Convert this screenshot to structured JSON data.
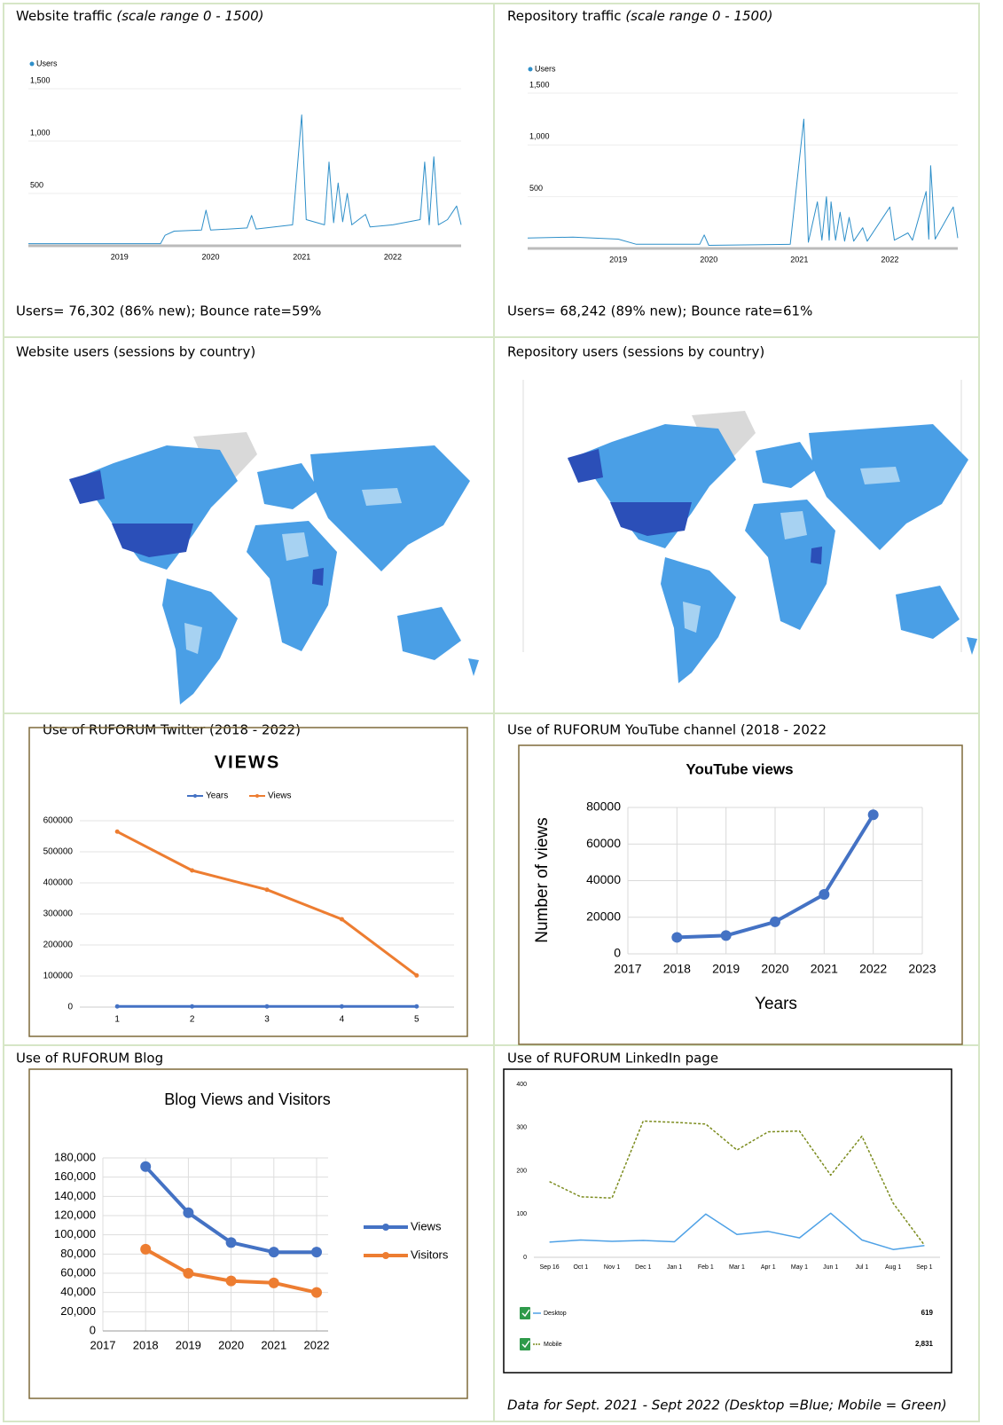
{
  "panels": [
    {
      "caption": "Website traffic",
      "caption_note": "(scale range 0 - 1500)",
      "footer": "Users= 76,302 (86% new); Bounce rate=59%"
    },
    {
      "caption": "Repository traffic",
      "caption_note": "(scale range 0 - 1500)",
      "footer": "Users= 68,242 (89% new); Bounce rate=61%"
    },
    {
      "caption": "Website users (sessions by country)"
    },
    {
      "caption": "Repository users (sessions by country)"
    },
    {
      "caption": "Use of RUFORUM Twitter (2018 - 2022)"
    },
    {
      "caption": "Use of RUFORUM YouTube channel (2018 - 2022"
    },
    {
      "caption": "Use of RUFORUM Blog"
    },
    {
      "caption": "Use of RUFORUM LinkedIn page",
      "footer": "Data for Sept. 2021 - Sept 2022 (Desktop =Blue; Mobile = Green)"
    }
  ],
  "chart_data": [
    {
      "type": "line",
      "grid": true,
      "x": [
        2018.0,
        2019.45,
        2019.5,
        2019.6,
        2019.9,
        2019.95,
        2020.0,
        2020.4,
        2020.45,
        2020.5,
        2020.9,
        2021.0,
        2021.05,
        2021.25,
        2021.3,
        2021.35,
        2021.4,
        2021.45,
        2021.5,
        2021.55,
        2021.7,
        2021.75,
        2022.0,
        2022.3,
        2022.35,
        2022.4,
        2022.45,
        2022.5,
        2022.6,
        2022.7,
        2022.75
      ],
      "series": [
        {
          "name": "Users",
          "color": "#2e8fc9",
          "values": [
            20,
            20,
            100,
            140,
            150,
            340,
            150,
            170,
            290,
            160,
            200,
            1250,
            250,
            200,
            800,
            220,
            600,
            230,
            500,
            200,
            300,
            180,
            200,
            250,
            800,
            200,
            850,
            200,
            250,
            380,
            200
          ]
        }
      ],
      "xlim": [
        2018,
        2022.75
      ],
      "xticks": [
        2019,
        2020,
        2021,
        2022
      ],
      "ylim": [
        0,
        1500
      ],
      "yticks": [
        500,
        {
          "value": 1000,
          "label": "1,000"
        },
        {
          "value": 1500,
          "label": "1,500"
        }
      ]
    },
    {
      "type": "line",
      "grid": true,
      "x": [
        2018.0,
        2018.5,
        2019.0,
        2019.2,
        2019.9,
        2019.95,
        2020.0,
        2020.9,
        2021.05,
        2021.1,
        2021.2,
        2021.25,
        2021.3,
        2021.33,
        2021.35,
        2021.4,
        2021.45,
        2021.5,
        2021.55,
        2021.6,
        2021.7,
        2021.75,
        2022.0,
        2022.05,
        2022.2,
        2022.25,
        2022.4,
        2022.43,
        2022.45,
        2022.5,
        2022.7,
        2022.75
      ],
      "series": [
        {
          "name": "Users",
          "color": "#2e8fc9",
          "values": [
            100,
            110,
            90,
            40,
            40,
            130,
            30,
            40,
            1250,
            60,
            450,
            80,
            500,
            80,
            450,
            80,
            350,
            70,
            300,
            70,
            200,
            70,
            400,
            80,
            150,
            80,
            550,
            90,
            800,
            90,
            400,
            100
          ]
        }
      ],
      "xlim": [
        2018,
        2022.75
      ],
      "xticks": [
        2019,
        2020,
        2021,
        2022
      ],
      "ylim": [
        0,
        1500
      ],
      "yticks": [
        500,
        {
          "value": 1000,
          "label": "1,000"
        },
        {
          "value": 1500,
          "label": "1,500"
        }
      ]
    },
    {
      "type": "line",
      "title": "VIEWS",
      "grid": true,
      "markers": true,
      "categories": [
        "1",
        "2",
        "3",
        "4",
        "5"
      ],
      "series": [
        {
          "name": "Years",
          "color": "#4472c4",
          "values": [
            2018,
            2019,
            2020,
            2021,
            2022
          ]
        },
        {
          "name": "Views",
          "color": "#ed7d31",
          "values": [
            565000,
            440000,
            378000,
            283000,
            102000
          ]
        }
      ],
      "ylim": [
        0,
        600000
      ],
      "yticks": [
        0,
        100000,
        200000,
        300000,
        400000,
        500000,
        600000
      ]
    },
    {
      "type": "line",
      "title": "YouTube views",
      "grid": true,
      "xgrid": true,
      "markers": true,
      "x_label": "Years",
      "y_label": "Number of views",
      "x": [
        2018,
        2019,
        2020,
        2021,
        2022
      ],
      "series": [
        {
          "color": "#4472c4",
          "values": [
            9000,
            10000,
            17500,
            32500,
            76000
          ]
        }
      ],
      "xlim": [
        2017,
        2023
      ],
      "xticks": [
        2017,
        2018,
        2019,
        2020,
        2021,
        2022,
        2023
      ],
      "ylim": [
        0,
        80000
      ],
      "yticks": [
        0,
        20000,
        40000,
        60000,
        80000
      ]
    },
    {
      "type": "line",
      "title": "Blog Views and Visitors",
      "grid": true,
      "xgrid": true,
      "markers": true,
      "x": [
        2018,
        2019,
        2020,
        2021,
        2022
      ],
      "series": [
        {
          "name": "Views",
          "color": "#4472c4",
          "values": [
            171000,
            123000,
            92000,
            82000,
            82000
          ]
        },
        {
          "name": "Visitors",
          "color": "#ed7d31",
          "values": [
            85000,
            60000,
            52000,
            50000,
            40000
          ]
        }
      ],
      "xlim": [
        2017,
        2022.27
      ],
      "xticks": [
        2017,
        2018,
        2019,
        2020,
        2021,
        2022
      ],
      "ylim": [
        0,
        180000
      ],
      "yticks": [
        0,
        {
          "value": 20000,
          "label": "20,000"
        },
        {
          "value": 40000,
          "label": "40,000"
        },
        {
          "value": 60000,
          "label": "60,000"
        },
        {
          "value": 80000,
          "label": "80,000"
        },
        {
          "value": 100000,
          "label": "100,000"
        },
        {
          "value": 120000,
          "label": "120,000"
        },
        {
          "value": 140000,
          "label": "140,000"
        },
        {
          "value": 160000,
          "label": "160,000"
        },
        {
          "value": 180000,
          "label": "180,000"
        }
      ]
    },
    {
      "type": "line",
      "grid": false,
      "categories": [
        "Sep 16",
        "Oct 1",
        "Nov 1",
        "Dec 1",
        "Jan 1",
        "Feb 1",
        "Mar 1",
        "Apr 1",
        "May 1",
        "Jun 1",
        "Jul 1",
        "Aug 1",
        "Sep 1"
      ],
      "series": [
        {
          "name": "Desktop",
          "color": "#4ea1e6",
          "total": 619,
          "values": [
            35,
            40,
            37,
            39,
            36,
            100,
            53,
            60,
            45,
            102,
            40,
            18,
            27
          ]
        },
        {
          "name": "Mobile",
          "color": "#7c8c1e",
          "dashed": true,
          "total": 2831,
          "total_label": "2,831",
          "values": [
            175,
            140,
            137,
            315,
            312,
            308,
            248,
            290,
            292,
            190,
            280,
            125,
            28
          ]
        }
      ],
      "ylim": [
        0,
        400
      ],
      "yticks": [
        0,
        100,
        200,
        300,
        400
      ]
    }
  ]
}
